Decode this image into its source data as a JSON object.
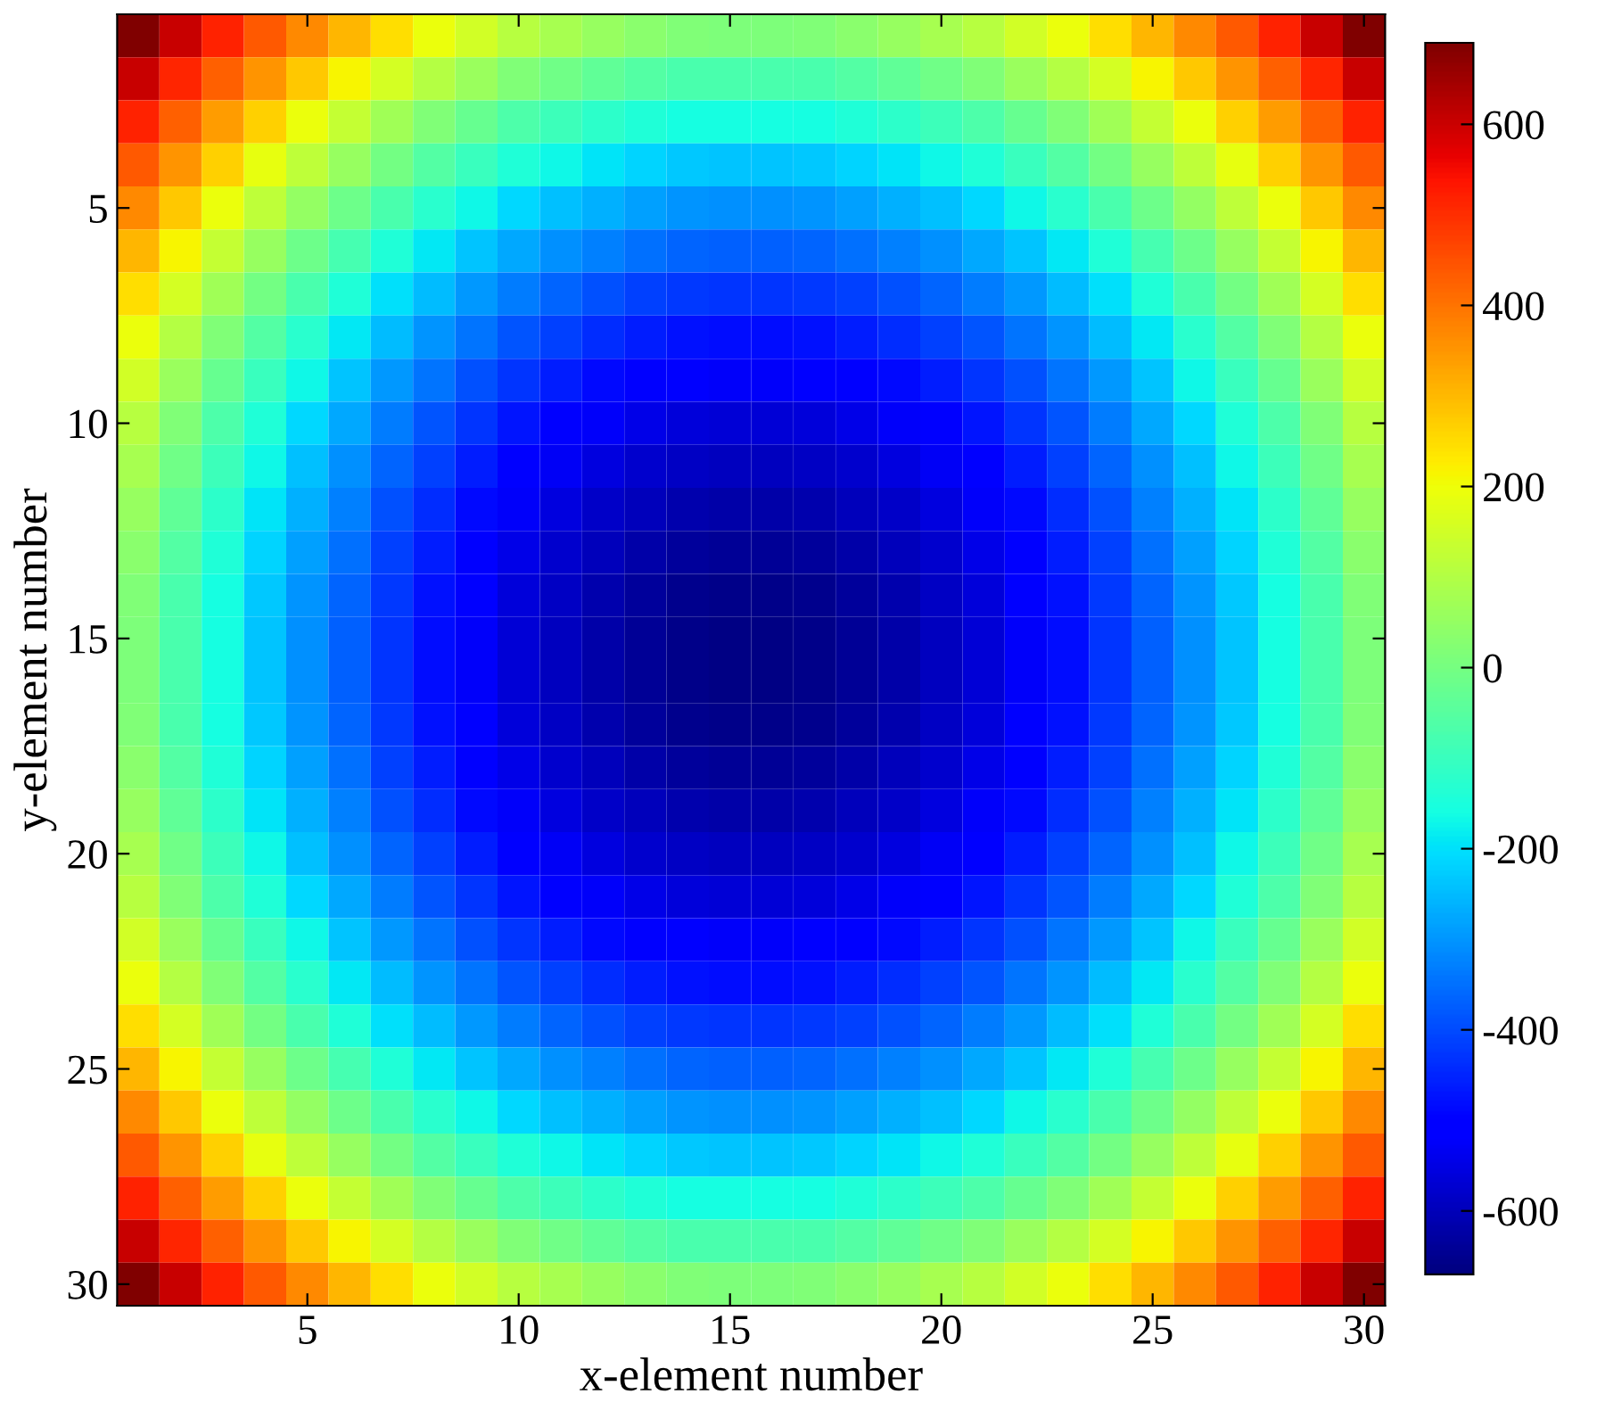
{
  "chart_data": {
    "type": "heatmap",
    "xlabel": "x-element number",
    "ylabel": "y-element number",
    "categories": [
      null,
      null,
      null,
      null,
      "5",
      null,
      null,
      null,
      null,
      "10",
      null,
      null,
      null,
      null,
      "15",
      null,
      null,
      null,
      null,
      "20",
      null,
      null,
      null,
      null,
      "25",
      null,
      null,
      null,
      null,
      "30"
    ],
    "y_categories": [
      null,
      null,
      null,
      null,
      "5",
      null,
      null,
      null,
      null,
      "10",
      null,
      null,
      null,
      null,
      "15",
      null,
      null,
      null,
      null,
      "20",
      null,
      null,
      null,
      null,
      "25",
      null,
      null,
      null,
      null,
      "30"
    ],
    "clim": [
      -670,
      690
    ],
    "cticks": [
      -600,
      -400,
      -200,
      0,
      200,
      400,
      600
    ],
    "cells": [
      [
        690,
        600,
        515,
        440,
        370,
        305,
        245,
        195,
        150,
        110,
        80,
        55,
        35,
        20,
        15,
        15,
        20,
        35,
        55,
        80,
        110,
        150,
        195,
        245,
        305,
        370,
        440,
        515,
        600,
        690
      ],
      [
        600,
        510,
        425,
        350,
        280,
        215,
        155,
        105,
        60,
        20,
        -10,
        -35,
        -55,
        -70,
        -75,
        -75,
        -70,
        -55,
        -35,
        -10,
        20,
        60,
        105,
        155,
        215,
        280,
        350,
        425,
        510,
        600
      ],
      [
        515,
        425,
        340,
        265,
        195,
        130,
        70,
        20,
        -25,
        -65,
        -95,
        -120,
        -140,
        -155,
        -160,
        -160,
        -155,
        -140,
        -120,
        -95,
        -65,
        -25,
        20,
        70,
        130,
        195,
        265,
        340,
        425,
        515
      ],
      [
        440,
        350,
        265,
        190,
        120,
        55,
        -5,
        -55,
        -100,
        -140,
        -170,
        -195,
        -215,
        -230,
        -235,
        -235,
        -230,
        -215,
        -195,
        -170,
        -140,
        -100,
        -55,
        -5,
        55,
        120,
        190,
        265,
        350,
        440
      ],
      [
        370,
        280,
        195,
        120,
        50,
        -15,
        -75,
        -125,
        -170,
        -210,
        -240,
        -265,
        -285,
        -300,
        -305,
        -305,
        -300,
        -285,
        -265,
        -240,
        -210,
        -170,
        -125,
        -75,
        -15,
        50,
        120,
        195,
        280,
        370
      ],
      [
        305,
        215,
        130,
        55,
        -15,
        -80,
        -140,
        -190,
        -235,
        -275,
        -305,
        -330,
        -350,
        -365,
        -370,
        -370,
        -365,
        -350,
        -330,
        -305,
        -275,
        -235,
        -190,
        -140,
        -80,
        -15,
        55,
        130,
        215,
        305
      ],
      [
        245,
        155,
        70,
        -5,
        -75,
        -140,
        -200,
        -250,
        -295,
        -335,
        -365,
        -390,
        -410,
        -425,
        -430,
        -430,
        -425,
        -410,
        -390,
        -365,
        -335,
        -295,
        -250,
        -200,
        -140,
        -75,
        -5,
        70,
        155,
        245
      ],
      [
        195,
        105,
        20,
        -55,
        -125,
        -190,
        -250,
        -300,
        -345,
        -385,
        -415,
        -440,
        -460,
        -475,
        -480,
        -480,
        -475,
        -460,
        -440,
        -415,
        -385,
        -345,
        -300,
        -250,
        -190,
        -125,
        -55,
        20,
        105,
        195
      ],
      [
        150,
        60,
        -25,
        -100,
        -170,
        -235,
        -295,
        -345,
        -390,
        -430,
        -460,
        -485,
        -505,
        -520,
        -525,
        -525,
        -520,
        -505,
        -485,
        -460,
        -430,
        -390,
        -345,
        -295,
        -235,
        -170,
        -100,
        -25,
        60,
        150
      ],
      [
        110,
        20,
        -65,
        -140,
        -210,
        -275,
        -335,
        -385,
        -430,
        -470,
        -500,
        -525,
        -545,
        -560,
        -565,
        -565,
        -560,
        -545,
        -525,
        -500,
        -470,
        -430,
        -385,
        -335,
        -275,
        -210,
        -140,
        -65,
        20,
        110
      ],
      [
        80,
        -10,
        -95,
        -170,
        -240,
        -305,
        -365,
        -415,
        -460,
        -500,
        -530,
        -555,
        -575,
        -590,
        -595,
        -595,
        -590,
        -575,
        -555,
        -530,
        -500,
        -460,
        -415,
        -365,
        -305,
        -240,
        -170,
        -95,
        -10,
        80
      ],
      [
        55,
        -35,
        -120,
        -195,
        -265,
        -330,
        -390,
        -440,
        -485,
        -525,
        -555,
        -580,
        -600,
        -615,
        -620,
        -620,
        -615,
        -600,
        -580,
        -555,
        -525,
        -485,
        -440,
        -390,
        -330,
        -265,
        -195,
        -120,
        -35,
        55
      ],
      [
        35,
        -55,
        -140,
        -215,
        -285,
        -350,
        -410,
        -460,
        -505,
        -545,
        -575,
        -600,
        -620,
        -635,
        -640,
        -640,
        -635,
        -620,
        -600,
        -575,
        -545,
        -505,
        -460,
        -410,
        -350,
        -285,
        -215,
        -140,
        -55,
        35
      ],
      [
        20,
        -70,
        -155,
        -230,
        -300,
        -365,
        -425,
        -475,
        -520,
        -560,
        -590,
        -615,
        -635,
        -650,
        -655,
        -655,
        -650,
        -635,
        -615,
        -590,
        -560,
        -520,
        -475,
        -425,
        -365,
        -300,
        -230,
        -155,
        -70,
        20
      ],
      [
        15,
        -75,
        -160,
        -235,
        -305,
        -370,
        -430,
        -480,
        -525,
        -565,
        -595,
        -620,
        -640,
        -655,
        -660,
        -660,
        -655,
        -640,
        -620,
        -595,
        -565,
        -525,
        -480,
        -430,
        -370,
        -305,
        -235,
        -160,
        -75,
        15
      ],
      [
        15,
        -75,
        -160,
        -235,
        -305,
        -370,
        -430,
        -480,
        -525,
        -565,
        -595,
        -620,
        -640,
        -655,
        -660,
        -660,
        -655,
        -640,
        -620,
        -595,
        -565,
        -525,
        -480,
        -430,
        -370,
        -305,
        -235,
        -160,
        -75,
        15
      ],
      [
        20,
        -70,
        -155,
        -230,
        -300,
        -365,
        -425,
        -475,
        -520,
        -560,
        -590,
        -615,
        -635,
        -650,
        -655,
        -655,
        -650,
        -635,
        -615,
        -590,
        -560,
        -520,
        -475,
        -425,
        -365,
        -300,
        -230,
        -155,
        -70,
        20
      ],
      [
        35,
        -55,
        -140,
        -215,
        -285,
        -350,
        -410,
        -460,
        -505,
        -545,
        -575,
        -600,
        -620,
        -635,
        -640,
        -640,
        -635,
        -620,
        -600,
        -575,
        -545,
        -505,
        -460,
        -410,
        -350,
        -285,
        -215,
        -140,
        -55,
        35
      ],
      [
        55,
        -35,
        -120,
        -195,
        -265,
        -330,
        -390,
        -440,
        -485,
        -525,
        -555,
        -580,
        -600,
        -615,
        -620,
        -620,
        -615,
        -600,
        -580,
        -555,
        -525,
        -485,
        -440,
        -390,
        -330,
        -265,
        -195,
        -120,
        -35,
        55
      ],
      [
        80,
        -10,
        -95,
        -170,
        -240,
        -305,
        -365,
        -415,
        -460,
        -500,
        -530,
        -555,
        -575,
        -590,
        -595,
        -595,
        -590,
        -575,
        -555,
        -530,
        -500,
        -460,
        -415,
        -365,
        -305,
        -240,
        -170,
        -95,
        -10,
        80
      ],
      [
        110,
        20,
        -65,
        -140,
        -210,
        -275,
        -335,
        -385,
        -430,
        -470,
        -500,
        -525,
        -545,
        -560,
        -565,
        -565,
        -560,
        -545,
        -525,
        -500,
        -470,
        -430,
        -385,
        -335,
        -275,
        -210,
        -140,
        -65,
        20,
        110
      ],
      [
        150,
        60,
        -25,
        -100,
        -170,
        -235,
        -295,
        -345,
        -390,
        -430,
        -460,
        -485,
        -505,
        -520,
        -525,
        -525,
        -520,
        -505,
        -485,
        -460,
        -430,
        -390,
        -345,
        -295,
        -235,
        -170,
        -100,
        -25,
        60,
        150
      ],
      [
        195,
        105,
        20,
        -55,
        -125,
        -190,
        -250,
        -300,
        -345,
        -385,
        -415,
        -440,
        -460,
        -475,
        -480,
        -480,
        -475,
        -460,
        -440,
        -415,
        -385,
        -345,
        -300,
        -250,
        -190,
        -125,
        -55,
        20,
        105,
        195
      ],
      [
        245,
        155,
        70,
        -5,
        -75,
        -140,
        -200,
        -250,
        -295,
        -335,
        -365,
        -390,
        -410,
        -425,
        -430,
        -430,
        -425,
        -410,
        -390,
        -365,
        -335,
        -295,
        -250,
        -200,
        -140,
        -75,
        -5,
        70,
        155,
        245
      ],
      [
        305,
        215,
        130,
        55,
        -15,
        -80,
        -140,
        -190,
        -235,
        -275,
        -305,
        -330,
        -350,
        -365,
        -370,
        -370,
        -365,
        -350,
        -330,
        -305,
        -275,
        -235,
        -190,
        -140,
        -80,
        -15,
        55,
        130,
        215,
        305
      ],
      [
        370,
        280,
        195,
        120,
        50,
        -15,
        -75,
        -125,
        -170,
        -210,
        -240,
        -265,
        -285,
        -300,
        -305,
        -305,
        -300,
        -285,
        -265,
        -240,
        -210,
        -170,
        -125,
        -75,
        -15,
        50,
        120,
        195,
        280,
        370
      ],
      [
        440,
        350,
        265,
        190,
        120,
        55,
        -5,
        -55,
        -100,
        -140,
        -170,
        -195,
        -215,
        -230,
        -235,
        -235,
        -230,
        -215,
        -195,
        -170,
        -140,
        -100,
        -55,
        -5,
        55,
        120,
        190,
        265,
        350,
        440
      ],
      [
        515,
        425,
        340,
        265,
        195,
        130,
        70,
        20,
        -25,
        -65,
        -95,
        -120,
        -140,
        -155,
        -160,
        -160,
        -155,
        -140,
        -120,
        -95,
        -65,
        -25,
        20,
        70,
        130,
        195,
        265,
        340,
        425,
        515
      ],
      [
        600,
        510,
        425,
        350,
        280,
        215,
        155,
        105,
        60,
        20,
        -10,
        -35,
        -55,
        -70,
        -75,
        -75,
        -70,
        -55,
        -35,
        -10,
        20,
        60,
        105,
        155,
        215,
        280,
        350,
        425,
        510,
        600
      ],
      [
        690,
        600,
        515,
        440,
        370,
        305,
        245,
        195,
        150,
        110,
        80,
        55,
        35,
        20,
        15,
        15,
        20,
        35,
        55,
        80,
        110,
        150,
        195,
        245,
        305,
        370,
        440,
        515,
        600,
        690
      ]
    ]
  }
}
